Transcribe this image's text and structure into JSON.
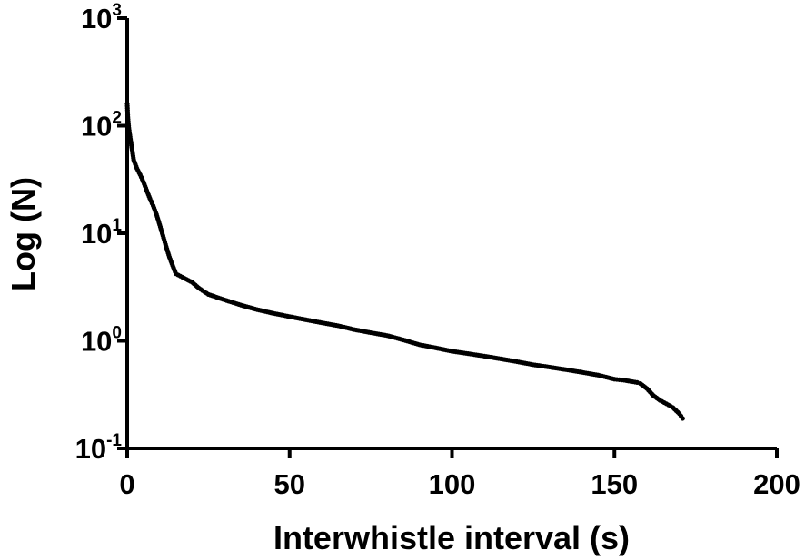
{
  "chart_data": {
    "type": "scatter",
    "xlabel": "Interwhistle interval (s)",
    "ylabel": "Log (N)",
    "xlim": [
      0,
      200
    ],
    "ylim": [
      0.1,
      1000
    ],
    "y_scale": "log",
    "grid": false,
    "legend": "none",
    "marker_color": "#000000",
    "x_ticks": [
      {
        "value": 0,
        "label": "0"
      },
      {
        "value": 50,
        "label": "50"
      },
      {
        "value": 100,
        "label": "100"
      },
      {
        "value": 150,
        "label": "150"
      },
      {
        "value": 200,
        "label": "200"
      }
    ],
    "y_ticks": [
      {
        "value": 0.1,
        "base": "10",
        "exp": "-1"
      },
      {
        "value": 1,
        "base": "10",
        "exp": "0"
      },
      {
        "value": 10,
        "base": "10",
        "exp": "1"
      },
      {
        "value": 100,
        "base": "10",
        "exp": "2"
      },
      {
        "value": 1000,
        "base": "10",
        "exp": "3"
      }
    ],
    "series": [
      {
        "x": [
          0,
          0.2,
          0.5,
          1,
          1.5,
          2,
          3,
          4,
          5,
          6,
          7,
          8,
          9,
          10,
          11,
          12,
          13,
          14,
          15,
          17,
          20,
          22,
          25,
          30,
          35,
          40,
          45,
          50,
          55,
          60,
          65,
          70,
          75,
          80,
          85,
          90,
          95,
          100,
          105,
          110,
          115,
          120,
          125,
          130,
          135,
          140,
          145,
          150,
          153,
          155,
          157,
          158,
          159,
          160,
          162,
          164,
          166,
          168,
          170,
          171
        ],
        "y": [
          160,
          120,
          95,
          75,
          60,
          48,
          40,
          35,
          30,
          25,
          21,
          18,
          15,
          12,
          9.5,
          7.5,
          6,
          5,
          4.2,
          3.9,
          3.5,
          3.1,
          2.7,
          2.4,
          2.15,
          1.95,
          1.8,
          1.68,
          1.57,
          1.47,
          1.38,
          1.27,
          1.19,
          1.12,
          1.02,
          0.92,
          0.86,
          0.8,
          0.76,
          0.72,
          0.68,
          0.64,
          0.6,
          0.57,
          0.54,
          0.51,
          0.48,
          0.44,
          0.43,
          0.42,
          0.41,
          0.4,
          0.38,
          0.36,
          0.31,
          0.28,
          0.26,
          0.24,
          0.21,
          0.19
        ]
      }
    ]
  }
}
